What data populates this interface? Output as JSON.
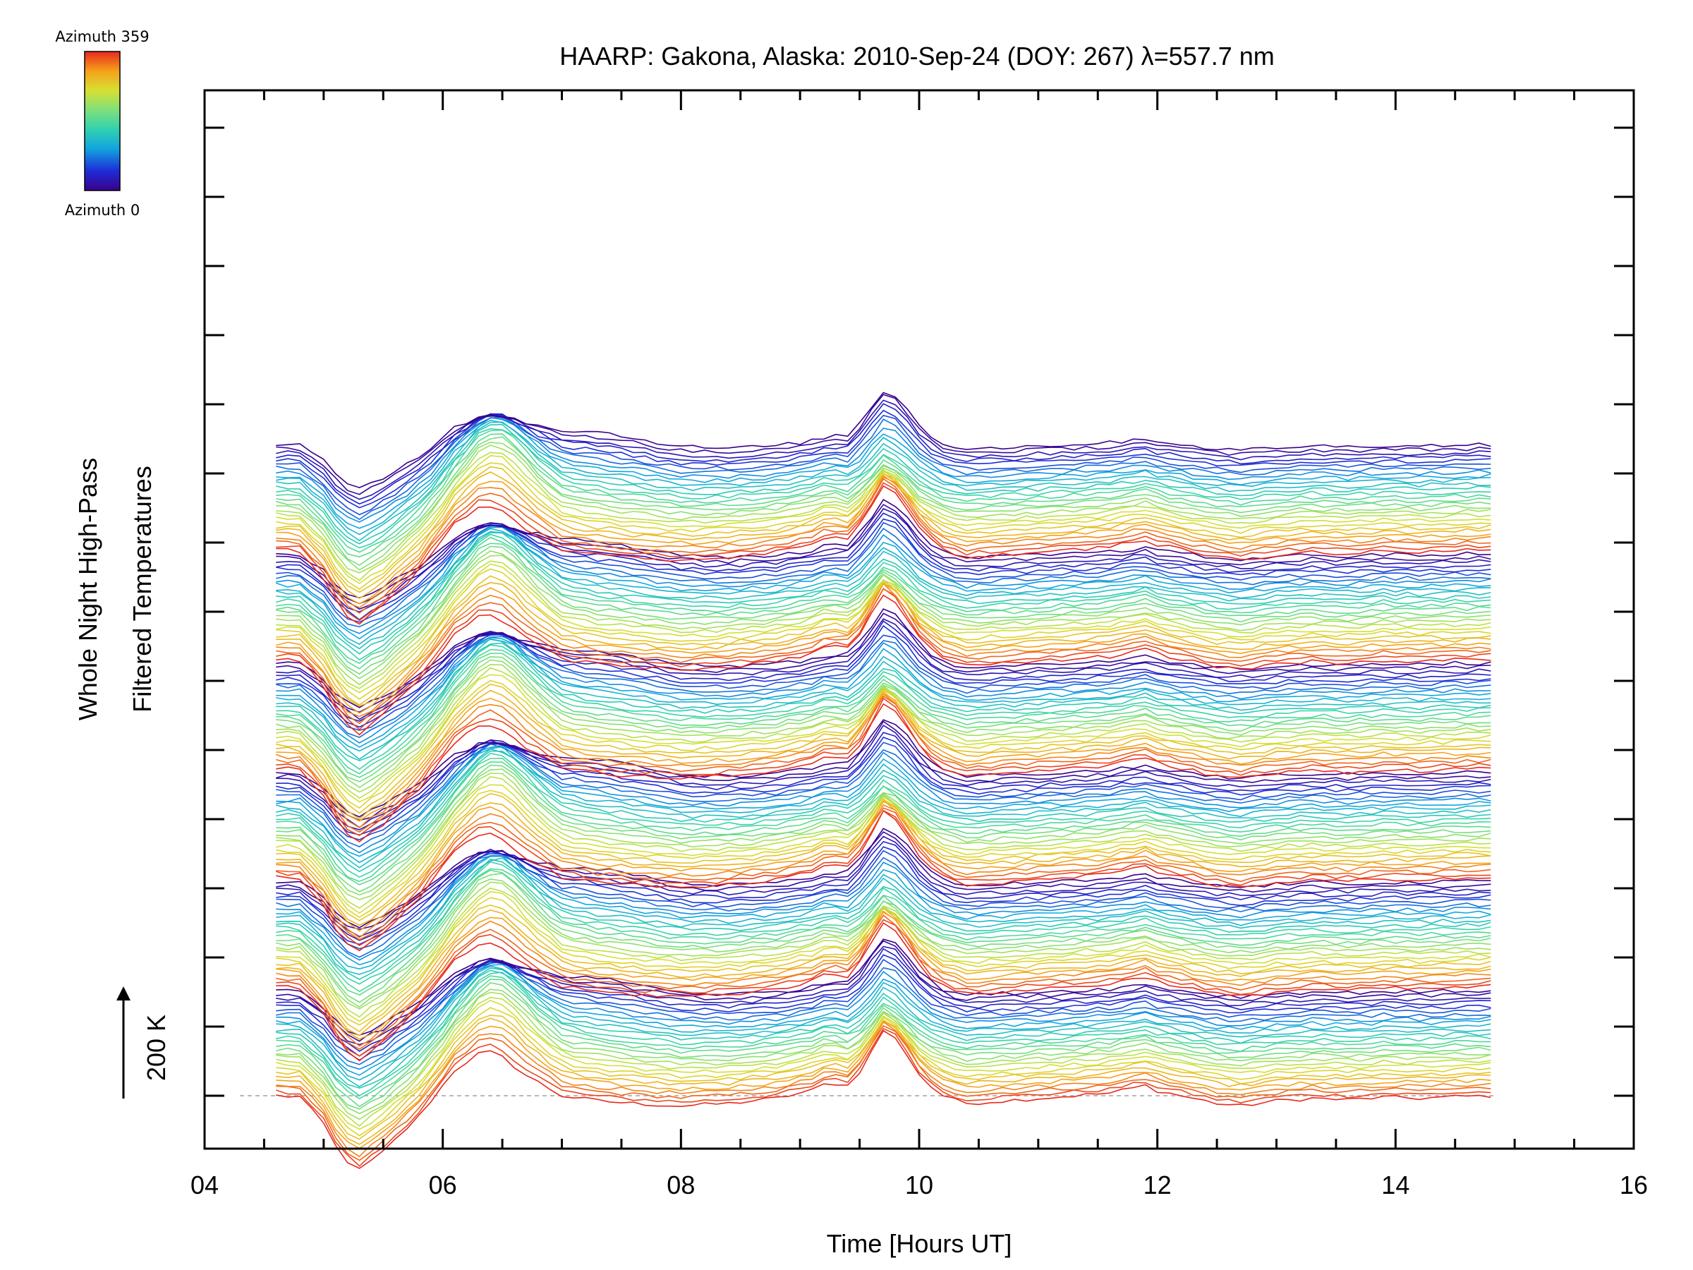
{
  "chart_data": {
    "type": "line",
    "title": "HAARP: Gakona,  Alaska: 2010-Sep-24 (DOY: 267) λ=557.7 nm",
    "xlabel": "Time [Hours UT]",
    "ylabel": [
      "Whole Night High-Pass",
      "Filtered Temperatures"
    ],
    "xlim": [
      4,
      16
    ],
    "xtick_labels": [
      "04",
      "06",
      "08",
      "10",
      "12",
      "14",
      "16"
    ],
    "scale_bar": {
      "label": "200 K",
      "value_K": 200
    },
    "colorbar": {
      "label_top": "Azimuth 359",
      "label_bottom": "Azimuth 0",
      "colors": [
        "#3b008c",
        "#1e2cd6",
        "#11a4e0",
        "#32d1b0",
        "#7fe07a",
        "#d8e033",
        "#f5a11a",
        "#e8281e"
      ]
    },
    "x_range_data": [
      4.6,
      14.8
    ],
    "series_count": 168,
    "series_spacing_K": 25,
    "group_size": 28,
    "common_profile": {
      "x": [
        4.6,
        4.8,
        5.0,
        5.15,
        5.3,
        5.5,
        5.8,
        6.1,
        6.35,
        6.5,
        6.7,
        7.0,
        7.3,
        7.6,
        8.0,
        8.4,
        8.8,
        9.1,
        9.25,
        9.4,
        9.55,
        9.7,
        9.85,
        10.0,
        10.2,
        10.4,
        10.7,
        11.0,
        11.3,
        11.6,
        11.9,
        12.0,
        12.2,
        12.5,
        12.7,
        13.0,
        13.3,
        13.6,
        13.9,
        14.2,
        14.5,
        14.8
      ],
      "values_K": [
        0,
        -2,
        -55,
        -120,
        -145,
        -110,
        -40,
        50,
        90,
        75,
        40,
        0,
        -10,
        -15,
        -20,
        -15,
        -5,
        10,
        25,
        5,
        20,
        60,
        35,
        10,
        -5,
        -15,
        -10,
        -5,
        0,
        5,
        20,
        10,
        0,
        -15,
        -20,
        -10,
        -5,
        -8,
        -3,
        -5,
        -2,
        0
      ]
    },
    "group_features": [
      {
        "center_h": 6.5,
        "width_h": 0.25,
        "amplitude_K": 60
      },
      {
        "center_h": 9.75,
        "width_h": 0.2,
        "amplitude_K": 70
      },
      {
        "center_h": 7.2,
        "width_h": 0.5,
        "amplitude_K": 30
      }
    ],
    "grid": false,
    "legend": "colorbar-top-left"
  }
}
